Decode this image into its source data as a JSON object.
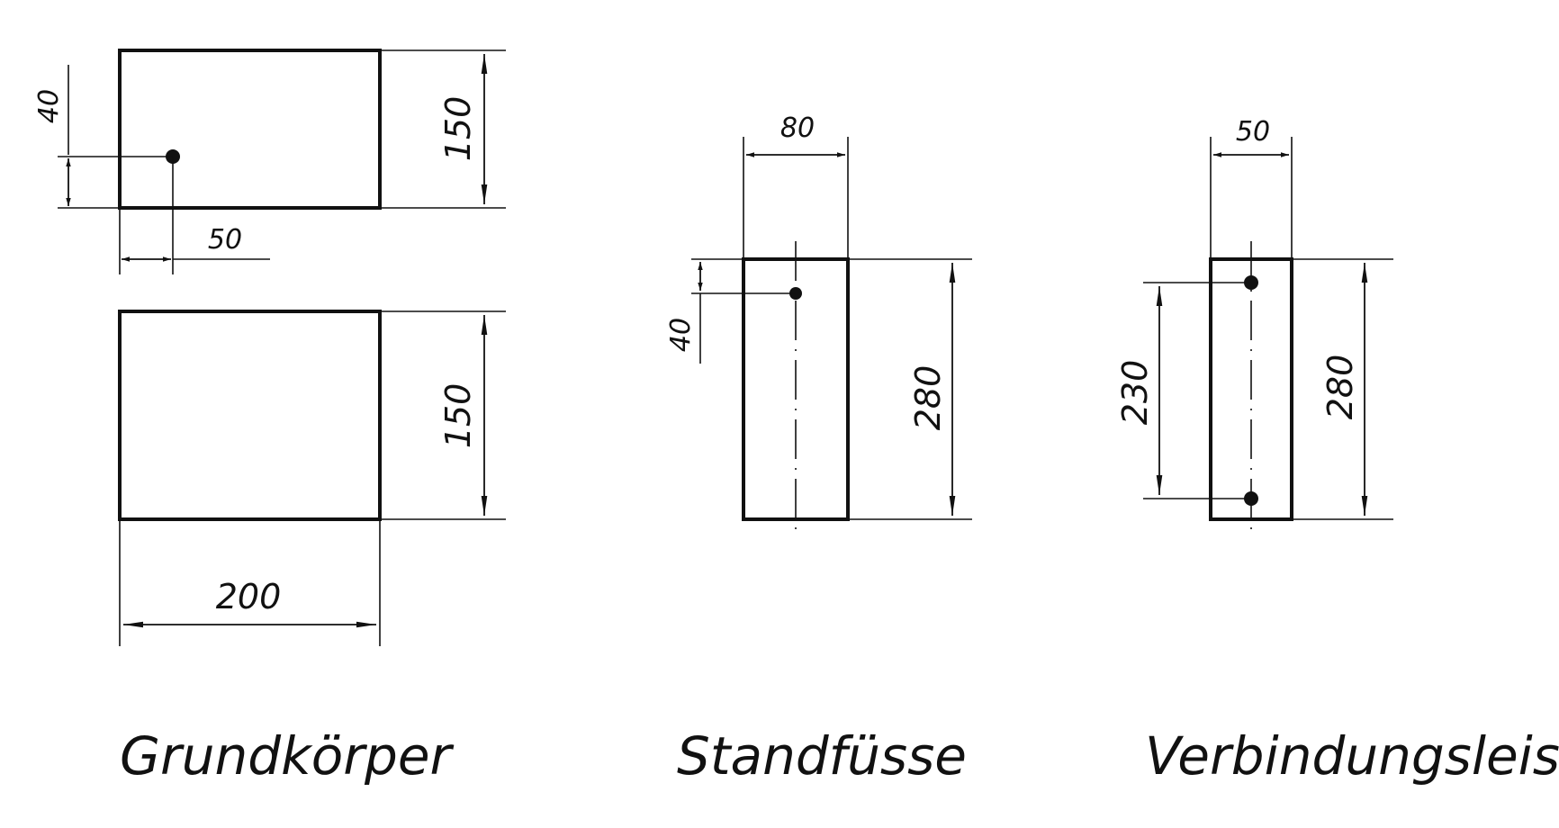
{
  "grundkoerper": {
    "caption": "Grundkörper",
    "top_view": {
      "dim_height": "150",
      "dim_hole_y": "40",
      "dim_hole_x": "50"
    },
    "front_view": {
      "dim_height": "150",
      "dim_width": "200"
    }
  },
  "standfuesse": {
    "caption": "Standfüsse",
    "dim_width": "80",
    "dim_height": "280",
    "dim_hole_y": "40"
  },
  "verbindungsleisten": {
    "caption": "Verbindungsleisten",
    "dim_width": "50",
    "dim_height": "280",
    "dim_hole_spacing": "230"
  }
}
